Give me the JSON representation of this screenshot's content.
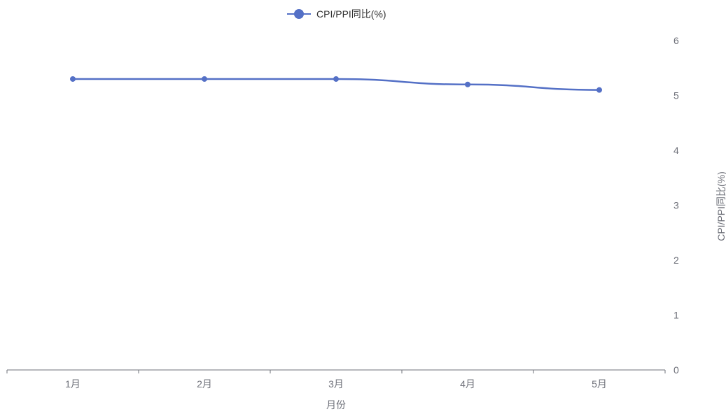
{
  "chart_data": {
    "type": "line",
    "categories": [
      "1月",
      "2月",
      "3月",
      "4月",
      "5月"
    ],
    "series": [
      {
        "name": "CPI/PPI同比(%)",
        "values": [
          5.3,
          5.3,
          5.3,
          5.2,
          5.1
        ],
        "color": "#5470c6",
        "smooth": true
      }
    ],
    "xlabel": "月份",
    "ylabel": "CPI/PPI同比(%)",
    "ylim": [
      0,
      6
    ],
    "yticks": [
      0,
      1,
      2,
      3,
      4,
      5,
      6
    ],
    "y_axis_side": "right",
    "grid": false,
    "legend": {
      "position": "top-center",
      "entries": [
        "CPI/PPI同比(%)"
      ]
    },
    "colors": {
      "axis_line": "#6e7079",
      "tick_text": "#6e7079",
      "legend_text": "#333333"
    }
  }
}
